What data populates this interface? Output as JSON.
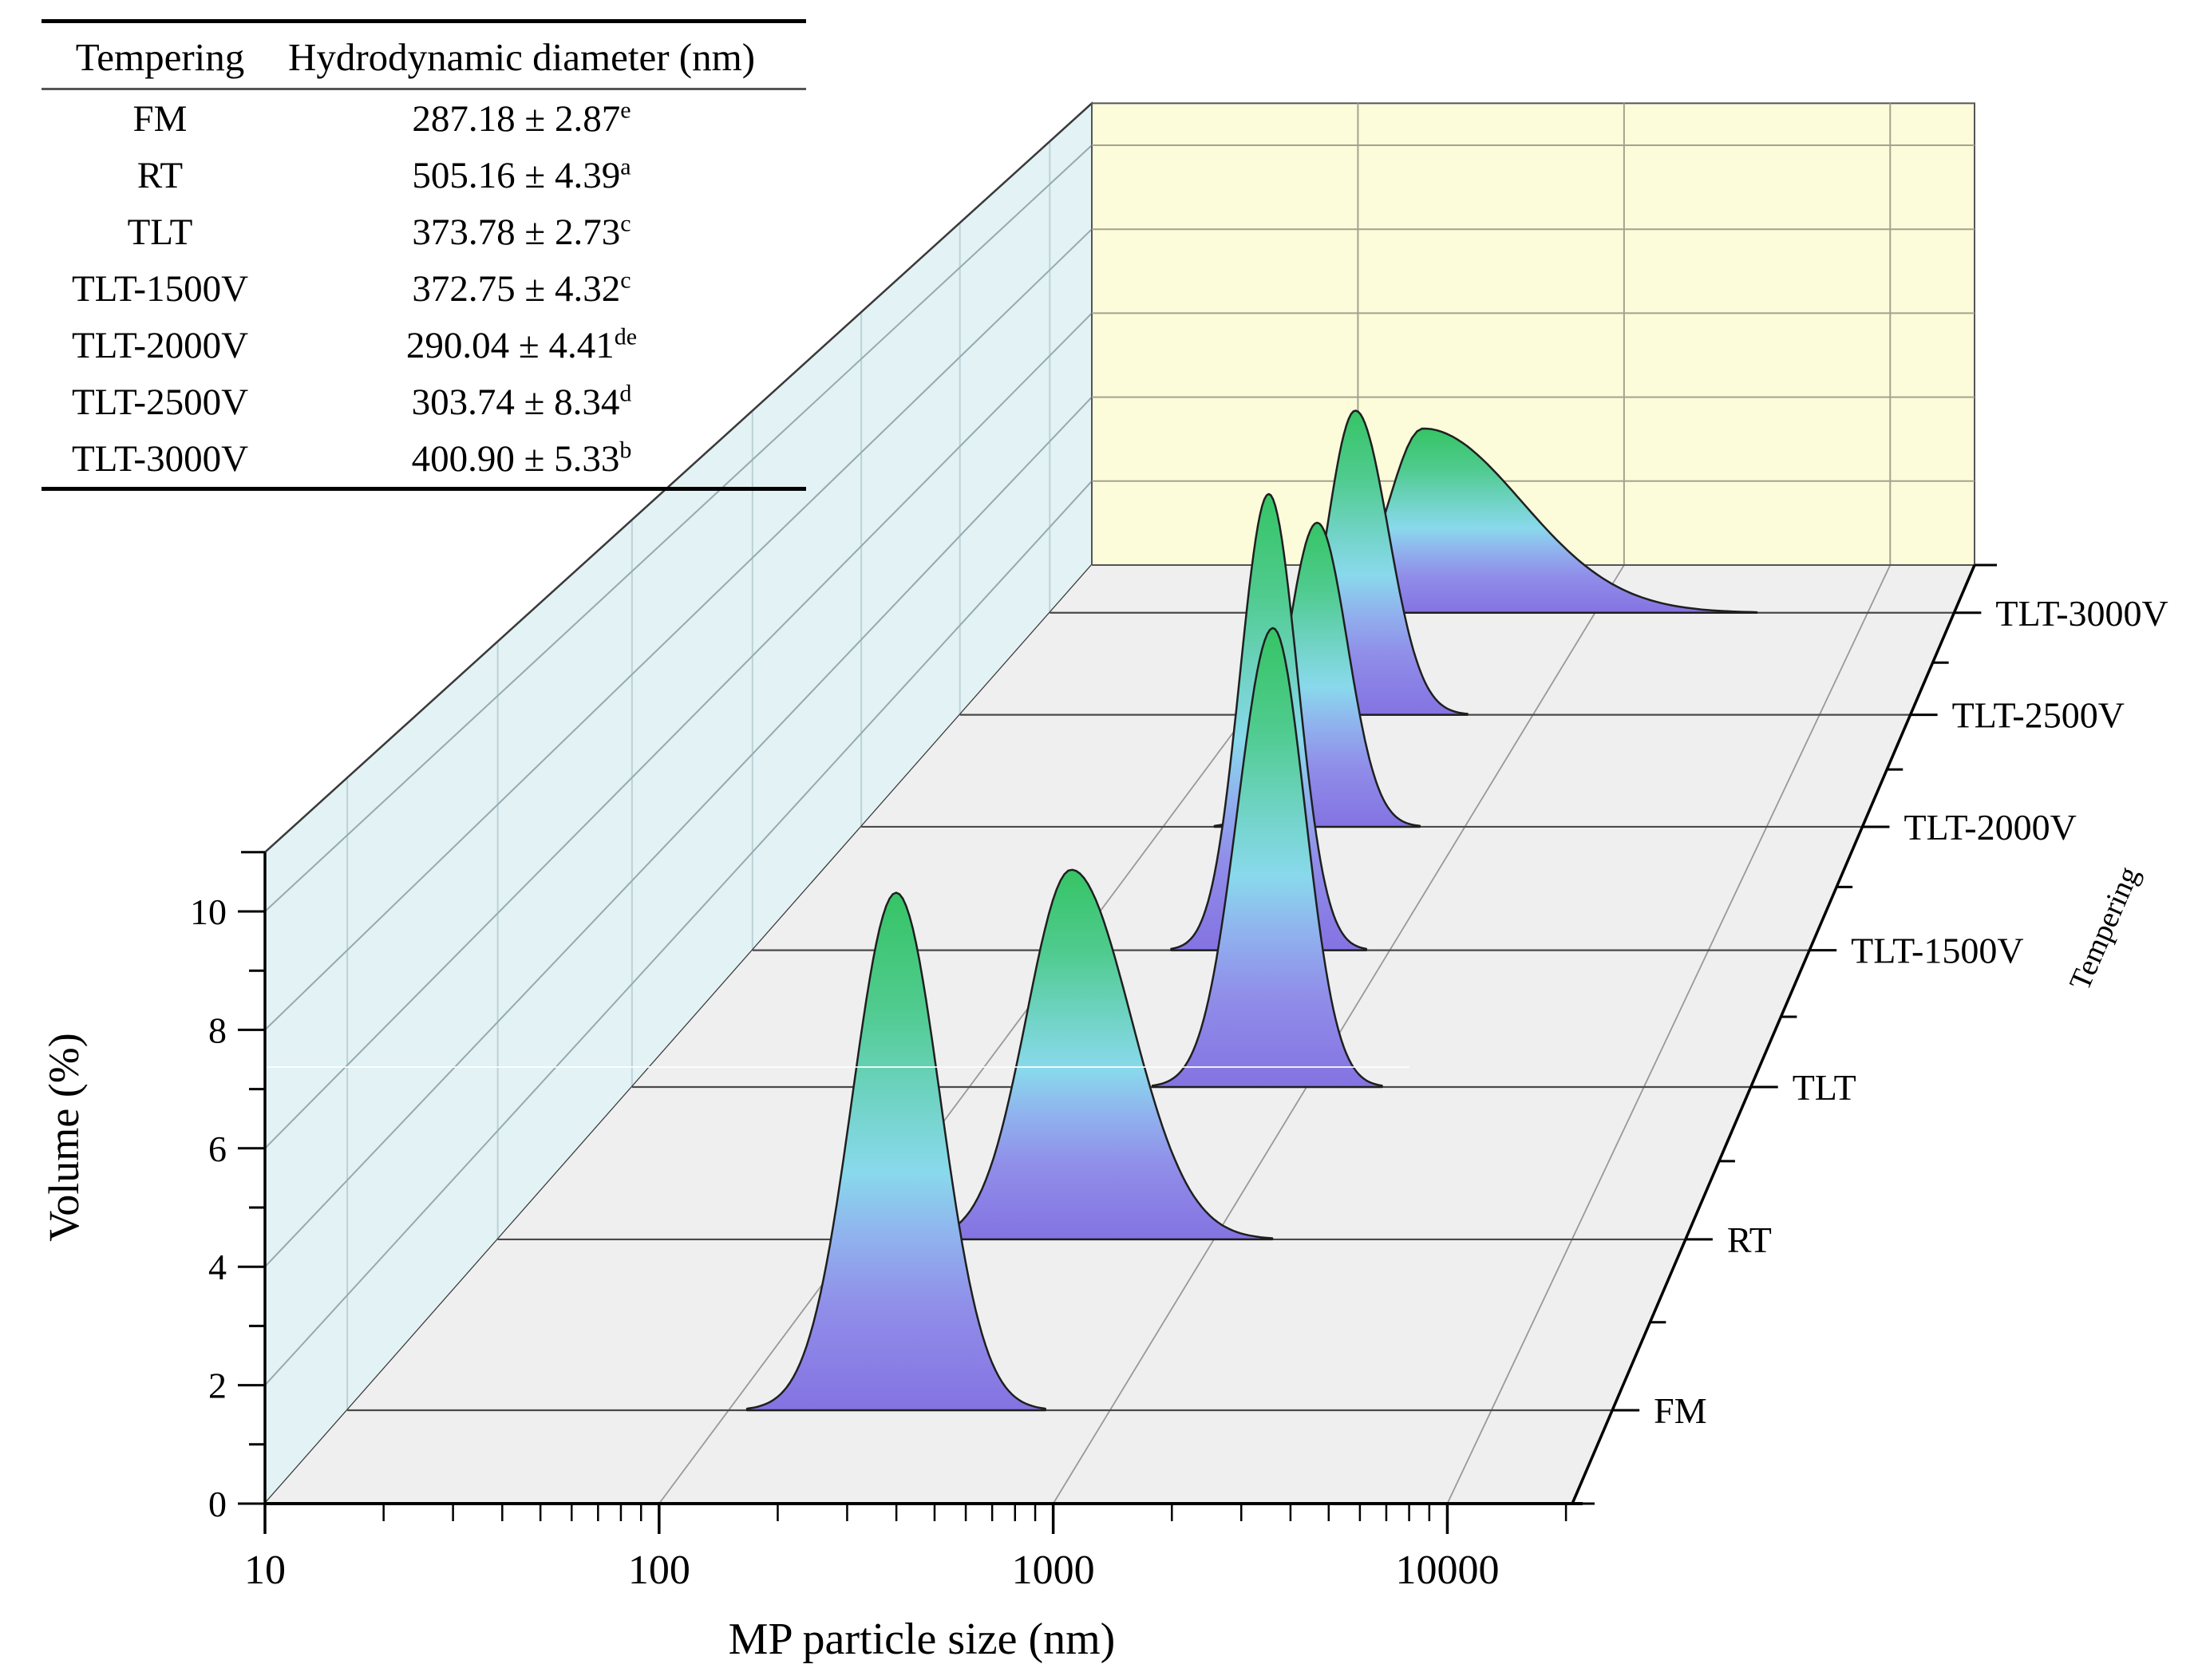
{
  "table": {
    "headers": [
      "Tempering",
      "Hydrodynamic diameter (nm)"
    ],
    "rows": [
      {
        "label": "FM",
        "value": "287.18 ± 2.87",
        "sup": "e"
      },
      {
        "label": "RT",
        "value": "505.16 ± 4.39",
        "sup": "a"
      },
      {
        "label": "TLT",
        "value": "373.78 ± 2.73",
        "sup": "c"
      },
      {
        "label": "TLT-1500V",
        "value": "372.75 ± 4.32",
        "sup": "c"
      },
      {
        "label": "TLT-2000V",
        "value": "290.04 ± 4.41",
        "sup": "de"
      },
      {
        "label": "TLT-2500V",
        "value": "303.74 ± 8.34",
        "sup": "d"
      },
      {
        "label": "TLT-3000V",
        "value": "400.90 ± 5.33",
        "sup": "b"
      }
    ]
  },
  "chart_data": {
    "type": "area",
    "variant": "3d-waterfall-log-x",
    "xlabel": "MP particle size (nm)",
    "ylabel": "Volume (%)",
    "zlabel": "Tempering",
    "x_scale": "log",
    "xlim": [
      10,
      20750
    ],
    "x_major_ticks": [
      10,
      100,
      1000,
      10000
    ],
    "ylim": [
      0,
      11
    ],
    "y_major_ticks": [
      0,
      2,
      4,
      6,
      8,
      10
    ],
    "y_minor_ticks": [
      1,
      3,
      5,
      7,
      9,
      11
    ],
    "grid": true,
    "legend_position": "none",
    "categories": [
      "FM",
      "RT",
      "TLT",
      "TLT-1500V",
      "TLT-2000V",
      "TLT-2500V",
      "TLT-3000V"
    ],
    "series": [
      {
        "name": "FM",
        "peak_nm": 275,
        "peak_volume_pct": 9.0,
        "sigma_log_left": 0.115,
        "sigma_log_right": 0.115
      },
      {
        "name": "RT",
        "peak_nm": 400,
        "peak_volume_pct": 6.8,
        "sigma_log_left": 0.125,
        "sigma_log_right": 0.165
      },
      {
        "name": "TLT",
        "peak_nm": 795,
        "peak_volume_pct": 8.9,
        "sigma_log_left": 0.105,
        "sigma_log_right": 0.095
      },
      {
        "name": "TLT-1500V",
        "peak_nm": 417,
        "peak_volume_pct": 9.3,
        "sigma_log_left": 0.09,
        "sigma_log_right": 0.09
      },
      {
        "name": "TLT-2000V",
        "peak_nm": 324,
        "peak_volume_pct": 6.5,
        "sigma_log_left": 0.1,
        "sigma_log_right": 0.1
      },
      {
        "name": "TLT-2500V",
        "peak_nm": 240,
        "peak_volume_pct": 6.8,
        "sigma_log_left": 0.1,
        "sigma_log_right": 0.115
      },
      {
        "name": "TLT-3000V",
        "peak_nm": 234,
        "peak_volume_pct": 4.3,
        "sigma_log_left": 0.125,
        "sigma_log_right": 0.36
      }
    ],
    "colors": {
      "left_wall": "#e2f2f5",
      "left_wall_grid": "#97aab0",
      "left_wall_grid_vertical": "#bdd2d7",
      "back_wall": "#fcfbda",
      "back_wall_grid": "#a3a390",
      "floor": "#efeff0",
      "floor_row_line": "#4a4a4a",
      "floor_decade_line": "#999999",
      "box_edge": "#3a3a3a",
      "axis": "#000000",
      "peak_outline": "#1f1f1f",
      "peak_gradient": [
        {
          "o": 0.0,
          "c": "#36c465"
        },
        {
          "o": 0.22,
          "c": "#4fcb8e"
        },
        {
          "o": 0.42,
          "c": "#74d4cb"
        },
        {
          "o": 0.54,
          "c": "#89d9ec"
        },
        {
          "o": 0.66,
          "c": "#90b3ee"
        },
        {
          "o": 0.8,
          "c": "#908ee9"
        },
        {
          "o": 1.0,
          "c": "#8473e2"
        }
      ]
    }
  }
}
